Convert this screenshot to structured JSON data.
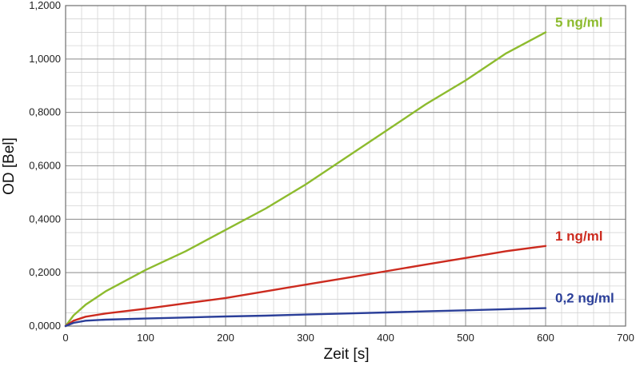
{
  "chart_data": {
    "type": "line",
    "title": "",
    "xlabel": "Zeit [s]",
    "ylabel": "OD [Bel]",
    "xlim": [
      0,
      700
    ],
    "ylim": [
      0,
      1.2
    ],
    "x_ticks": [
      0,
      100,
      200,
      300,
      400,
      500,
      600,
      700
    ],
    "x_tick_labels": [
      "0",
      "100",
      "200",
      "300",
      "400",
      "500",
      "600",
      "700"
    ],
    "y_ticks": [
      0,
      0.2,
      0.4,
      0.6,
      0.8,
      1.0,
      1.2
    ],
    "y_tick_labels": [
      "0,0000",
      "0,2000",
      "0,4000",
      "0,6000",
      "0,8000",
      "1,0000",
      "1,2000"
    ],
    "grid": true,
    "minor_grid": true,
    "legend": "none",
    "series": [
      {
        "name": "5 ng/ml",
        "color": "#8dbb2e",
        "x": [
          0,
          10,
          25,
          50,
          75,
          100,
          150,
          200,
          250,
          300,
          350,
          400,
          450,
          500,
          550,
          600
        ],
        "values": [
          0,
          0.04,
          0.08,
          0.13,
          0.17,
          0.21,
          0.28,
          0.36,
          0.44,
          0.53,
          0.63,
          0.73,
          0.83,
          0.92,
          1.02,
          1.1
        ]
      },
      {
        "name": "1 ng/ml",
        "color": "#cc2b1f",
        "x": [
          0,
          10,
          25,
          50,
          100,
          150,
          200,
          250,
          300,
          350,
          400,
          450,
          500,
          550,
          600
        ],
        "values": [
          0,
          0.02,
          0.035,
          0.047,
          0.065,
          0.085,
          0.105,
          0.13,
          0.155,
          0.18,
          0.205,
          0.23,
          0.255,
          0.28,
          0.3
        ]
      },
      {
        "name": "0,2 ng/ml",
        "color": "#2b3f99",
        "x": [
          0,
          10,
          25,
          50,
          100,
          150,
          200,
          250,
          300,
          350,
          400,
          450,
          500,
          550,
          600
        ],
        "values": [
          0,
          0.012,
          0.02,
          0.024,
          0.028,
          0.032,
          0.036,
          0.039,
          0.043,
          0.047,
          0.051,
          0.055,
          0.059,
          0.063,
          0.067
        ]
      }
    ]
  }
}
